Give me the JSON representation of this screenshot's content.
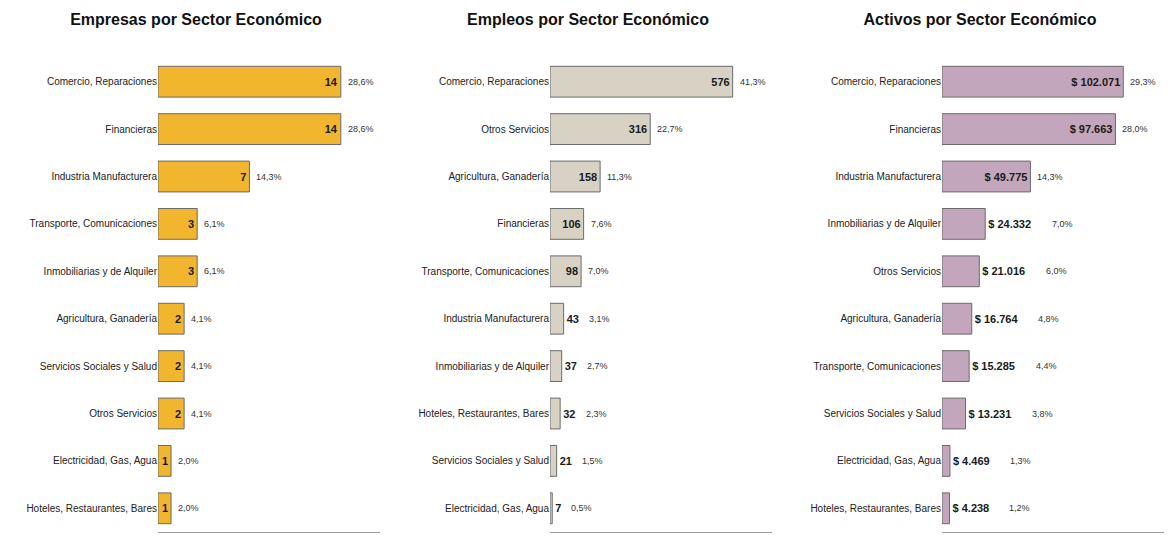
{
  "chart_data": [
    {
      "type": "bar",
      "title": "Empresas por Sector Económico",
      "orientation": "horizontal",
      "categories": [
        "Comercio, Reparaciones",
        "Financieras",
        "Industria Manufacturera",
        "Transporte, Comunicaciones",
        "Inmobiliarias y de Alquiler",
        "Agricultura, Ganadería",
        "Servicios Sociales y Salud",
        "Otros Servicios",
        "Electricidad, Gas, Agua",
        "Hoteles, Restaurantes, Bares"
      ],
      "values": [
        14,
        14,
        7,
        3,
        3,
        2,
        2,
        2,
        1,
        1
      ],
      "share_labels": [
        "28,6%",
        "28,6%",
        "14,3%",
        "6,1%",
        "6,1%",
        "4,1%",
        "4,1%",
        "4,1%",
        "2,0%",
        "2,0%"
      ],
      "color": "#f2b52e",
      "xlim": [
        0,
        17
      ],
      "data_labels": true,
      "tick_labels": "y",
      "grid": false
    },
    {
      "type": "bar",
      "title": "Empleos por Sector Económico",
      "orientation": "horizontal",
      "categories": [
        "Comercio, Reparaciones",
        "Otros Servicios",
        "Agricultura, Ganadería",
        "Financieras",
        "Transporte, Comunicaciones",
        "Industria Manufacturera",
        "Inmobiliarias y de Alquiler",
        "Hoteles, Restaurantes, Bares",
        "Servicios Sociales y Salud",
        "Electricidad, Gas, Agua"
      ],
      "values": [
        576,
        316,
        158,
        106,
        98,
        43,
        37,
        32,
        21,
        7
      ],
      "share_labels": [
        "41,3%",
        "22,7%",
        "11,3%",
        "7,6%",
        "7,0%",
        "3,1%",
        "2,7%",
        "2,3%",
        "1,5%",
        "0,5%"
      ],
      "color": "#d8d2c4",
      "xlim": [
        0,
        700
      ],
      "data_labels": true,
      "tick_labels": "y",
      "grid": false
    },
    {
      "type": "bar",
      "title": "Activos por Sector Económico",
      "orientation": "horizontal",
      "categories": [
        "Comercio, Reparaciones",
        "Financieras",
        "Industria Manufacturera",
        "Inmobiliarias y de Alquiler",
        "Otros Servicios",
        "Agricultura, Ganadería",
        "Transporte, Comunicaciones",
        "Servicios Sociales y Salud",
        "Electricidad, Gas, Agua",
        "Hoteles, Restaurantes, Bares"
      ],
      "values": [
        102071,
        97663,
        49775,
        24332,
        21016,
        16764,
        15285,
        13231,
        4469,
        4238
      ],
      "value_labels": [
        "$ 102.071",
        "$ 97.663",
        "$ 49.775",
        "$ 24.332",
        "$ 21.016",
        "$ 16.764",
        "$ 15.285",
        "$ 13.231",
        "$ 4.469",
        "$ 4.238"
      ],
      "share_labels": [
        "29,3%",
        "28,0%",
        "14,3%",
        "7,0%",
        "6,0%",
        "4,8%",
        "4,4%",
        "3,8%",
        "1,3%",
        "1,2%"
      ],
      "color": "#c3a6bb",
      "xlim": [
        0,
        125000
      ],
      "data_labels": true,
      "tick_labels": "y",
      "grid": false
    }
  ]
}
